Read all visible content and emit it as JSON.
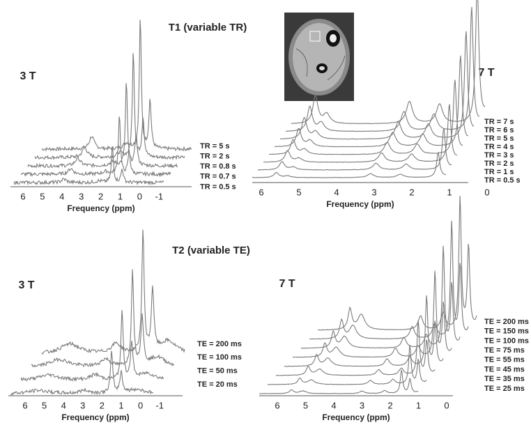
{
  "figure": {
    "t1": {
      "title": "T1 (variable TR)",
      "panels": [
        {
          "field": "3 T",
          "axis_label": "Frequency (ppm)",
          "ticks": [
            "6",
            "5",
            "4",
            "3",
            "2",
            "1",
            "0",
            "-1"
          ],
          "traces": [
            "TR = 5 s",
            "TR = 2 s",
            "TR = 0.8 s",
            "TR = 0.7 s",
            "TR = 0.5 s"
          ]
        },
        {
          "field": "7 T",
          "axis_label": "Frequency (ppm)",
          "ticks": [
            "6",
            "5",
            "4",
            "3",
            "2",
            "1",
            "0"
          ],
          "traces": [
            "TR = 7 s",
            "TR = 6 s",
            "TR = 5 s",
            "TR = 4 s",
            "TR = 3 s",
            "TR = 2 s",
            "TR = 1 s",
            "TR = 0.5 s"
          ]
        }
      ]
    },
    "t2": {
      "title": "T2 (variable TE)",
      "panels": [
        {
          "field": "3 T",
          "axis_label": "Frequency (ppm)",
          "ticks": [
            "6",
            "5",
            "4",
            "3",
            "2",
            "1",
            "0",
            "-1"
          ],
          "traces": [
            "TE = 200 ms",
            "TE = 100 ms",
            "TE = 50 ms",
            "TE = 20 ms"
          ]
        },
        {
          "field": "7 T",
          "axis_label": "Frequency (ppm)",
          "ticks": [
            "6",
            "5",
            "4",
            "3",
            "2",
            "1",
            "0"
          ],
          "traces": [
            "TE = 200 ms",
            "TE = 150 ms",
            "TE = 100 ms",
            "TE = 75 ms",
            "TE = 55 ms",
            "TE = 45 ms",
            "TE = 35 ms",
            "TE = 25 ms"
          ]
        }
      ]
    }
  }
}
